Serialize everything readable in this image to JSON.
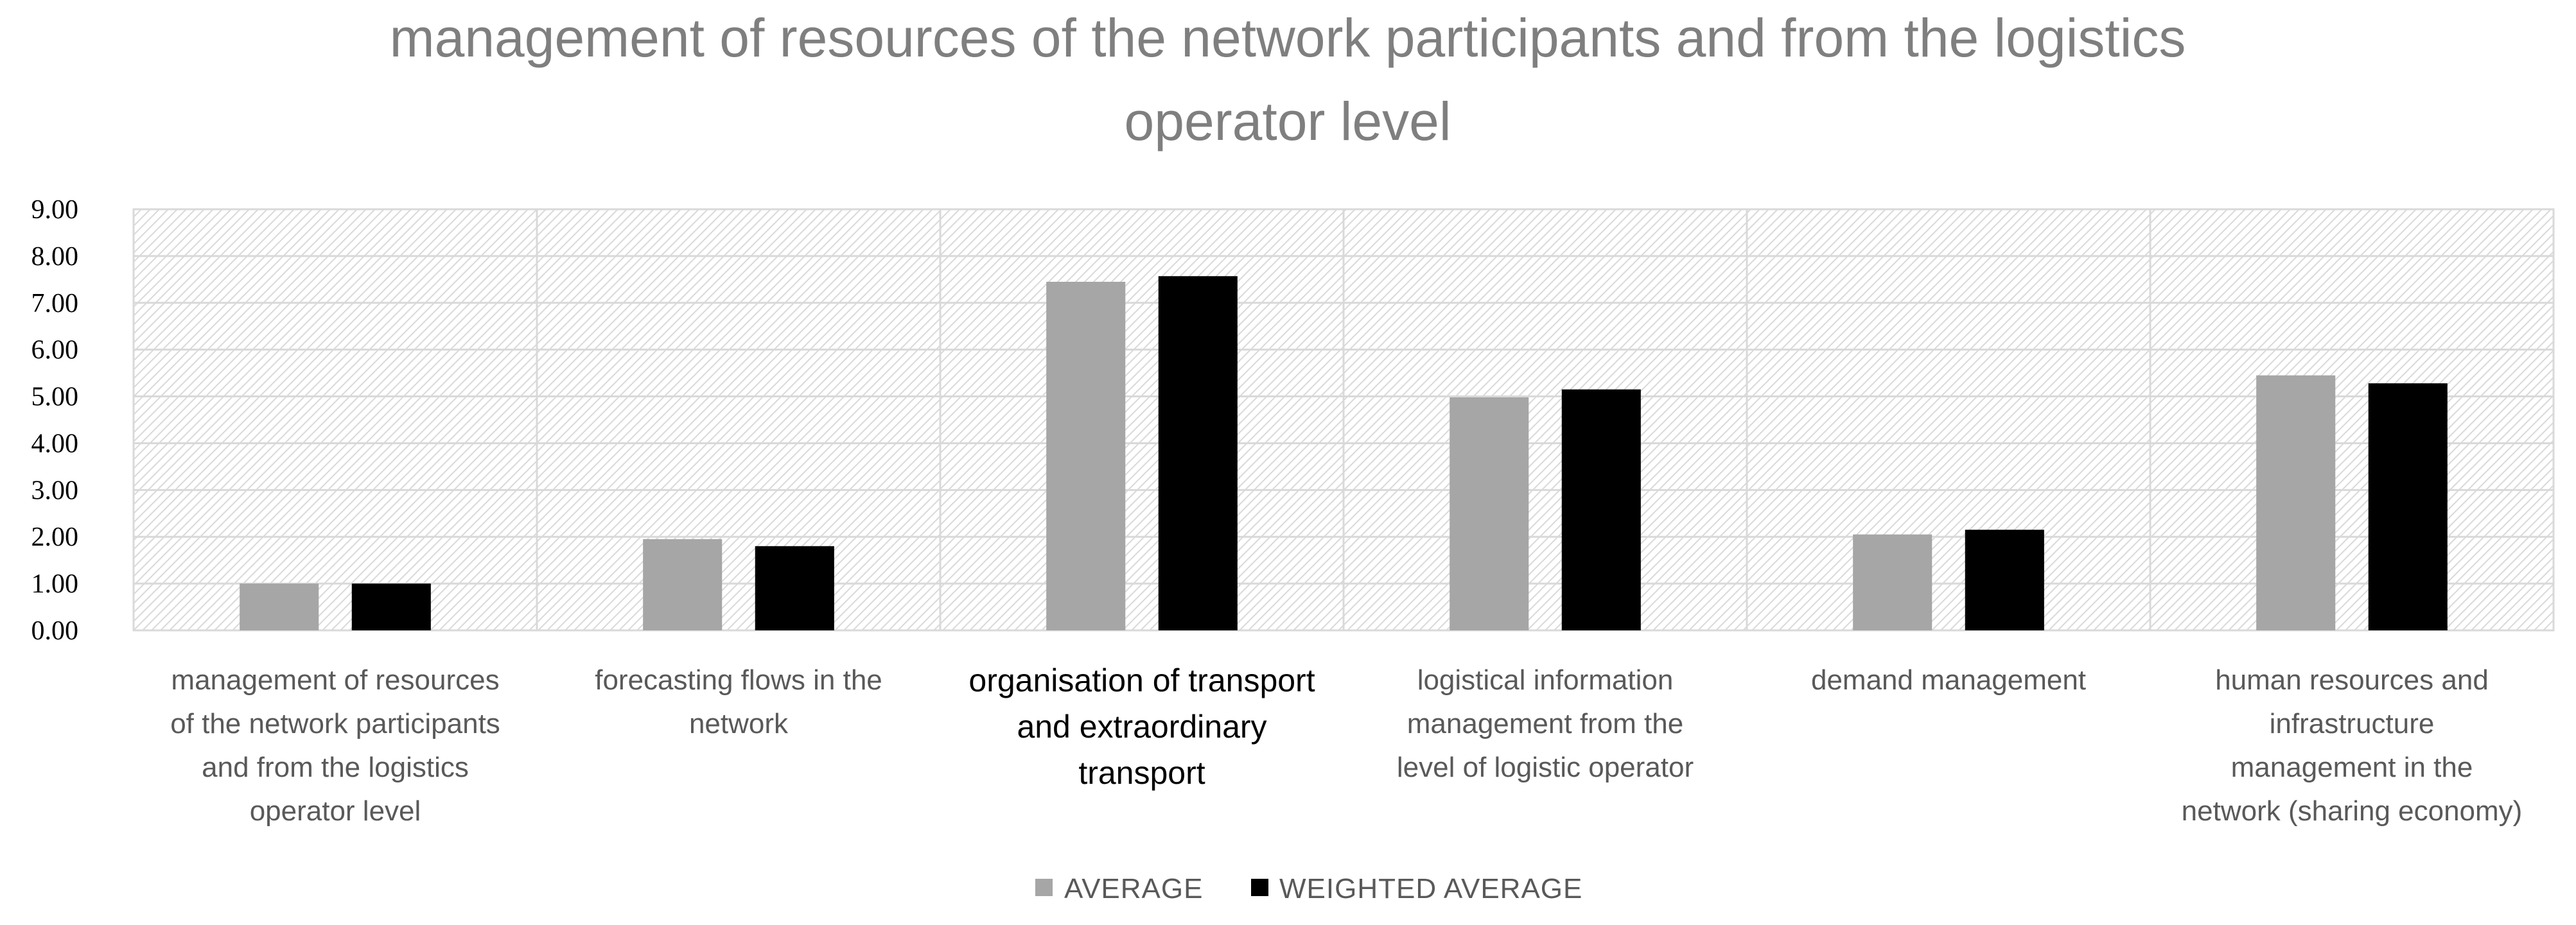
{
  "chart_data": {
    "type": "bar",
    "title": "management of resources of the network participants and from the logistics operator level",
    "title_lines": [
      "management of resources of the network participants and from the logistics",
      "operator level"
    ],
    "categories": [
      "management of resources of the network participants and from the logistics operator level",
      "forecasting flows in the network",
      "organisation of transport and extraordinary transport",
      "logistical information management from the level of logistic operator",
      "demand management",
      "human resources and infrastructure management in the network (sharing economy)"
    ],
    "category_lines": [
      [
        "management of resources",
        "of the network participants",
        "and from the logistics",
        "operator level"
      ],
      [
        "forecasting flows in the",
        "network"
      ],
      [
        "organisation of transport",
        "and extraordinary",
        "transport"
      ],
      [
        "logistical information",
        "management from the",
        "level of logistic operator"
      ],
      [
        "demand management"
      ],
      [
        "human resources and",
        "infrastructure",
        "management in the",
        "network (sharing economy)"
      ]
    ],
    "series": [
      {
        "name": "AVERAGE",
        "color": "#a6a6a6",
        "values": [
          1.0,
          1.95,
          7.45,
          4.98,
          2.05,
          5.45
        ]
      },
      {
        "name": "WEIGHTED AVERAGE",
        "color": "#000000",
        "values": [
          1.0,
          1.8,
          7.57,
          5.15,
          2.15,
          5.28
        ]
      }
    ],
    "y_ticks": [
      "0.00",
      "1.00",
      "2.00",
      "3.00",
      "4.00",
      "5.00",
      "6.00",
      "7.00",
      "8.00",
      "9.00"
    ],
    "ylim": [
      0,
      9
    ],
    "xlabel": "",
    "ylabel": "",
    "grid": true,
    "legend_position": "bottom"
  }
}
